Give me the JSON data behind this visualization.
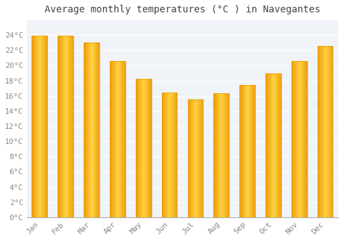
{
  "title": "Average monthly temperatures (°C ) in Navegantes",
  "months": [
    "Jan",
    "Feb",
    "Mar",
    "Apr",
    "May",
    "Jun",
    "Jul",
    "Aug",
    "Sep",
    "Oct",
    "Nov",
    "Dec"
  ],
  "temperatures": [
    23.9,
    23.9,
    23.0,
    20.6,
    18.2,
    16.4,
    15.5,
    16.3,
    17.4,
    19.0,
    20.6,
    22.6
  ],
  "bar_color_left": "#F5A800",
  "bar_color_center": "#FFD050",
  "bar_color_right": "#F5A800",
  "background_color": "#FFFFFF",
  "plot_bg_color": "#F0F4F8",
  "grid_color": "#FFFFFF",
  "title_color": "#444444",
  "tick_label_color": "#888888",
  "ylim": [
    0,
    26
  ],
  "yticks": [
    0,
    2,
    4,
    6,
    8,
    10,
    12,
    14,
    16,
    18,
    20,
    22,
    24
  ],
  "title_fontsize": 10,
  "tick_fontsize": 8,
  "font_family": "monospace"
}
